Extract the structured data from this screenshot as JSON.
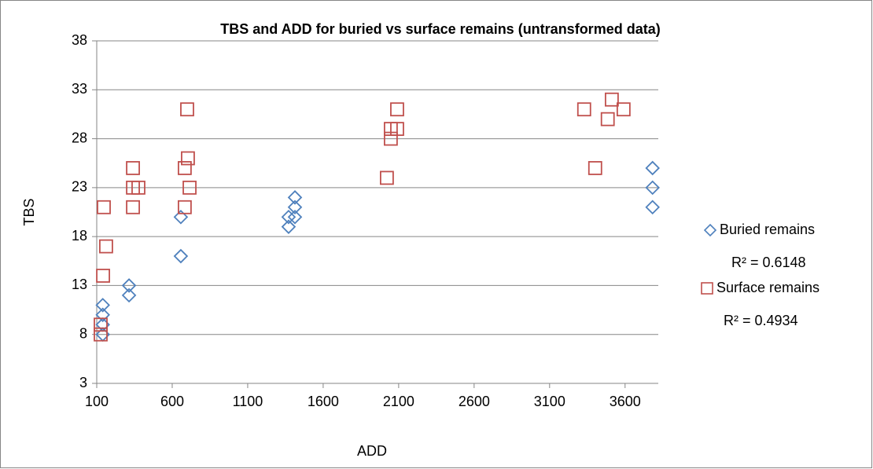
{
  "chart_data": {
    "type": "scatter",
    "title": "TBS and ADD for buried vs surface remains  (untransformed data)",
    "x_label": "ADD",
    "y_label": "TBS",
    "xlim": [
      100,
      3820
    ],
    "xticks": [
      100,
      600,
      1100,
      1600,
      2100,
      2600,
      3100,
      3600
    ],
    "ylim": [
      3,
      38
    ],
    "yticks": [
      3,
      8,
      13,
      18,
      23,
      28,
      33,
      38
    ],
    "grid": true,
    "legend": "right",
    "series": [
      {
        "name": "Buried remains",
        "color": "#4f81bd",
        "marker": "diamond",
        "trendline_label": "R² = 0.6148",
        "x": [
          140,
          140,
          140,
          140,
          314,
          314,
          657,
          657,
          1371,
          1371,
          1413,
          1413,
          1413,
          3782,
          3782,
          3782
        ],
        "values": [
          11,
          10,
          9,
          8,
          13,
          12,
          20,
          16,
          19,
          20,
          20,
          21,
          22,
          25,
          23,
          21
        ]
      },
      {
        "name": "Surface remains",
        "color": "#c0504d",
        "marker": "square",
        "trendline_label": "R² = 0.4934",
        "x": [
          126,
          126,
          142,
          147,
          162,
          340,
          340,
          340,
          376,
          683,
          683,
          699,
          704,
          715,
          2022,
          2048,
          2048,
          2090,
          2090,
          3329,
          3402,
          3485,
          3512,
          3590
        ],
        "values": [
          8,
          9,
          14,
          21,
          17,
          25,
          23,
          21,
          23,
          25,
          21,
          31,
          26,
          23,
          24,
          28,
          29,
          31,
          29,
          31,
          25,
          30,
          32,
          31
        ]
      }
    ]
  }
}
